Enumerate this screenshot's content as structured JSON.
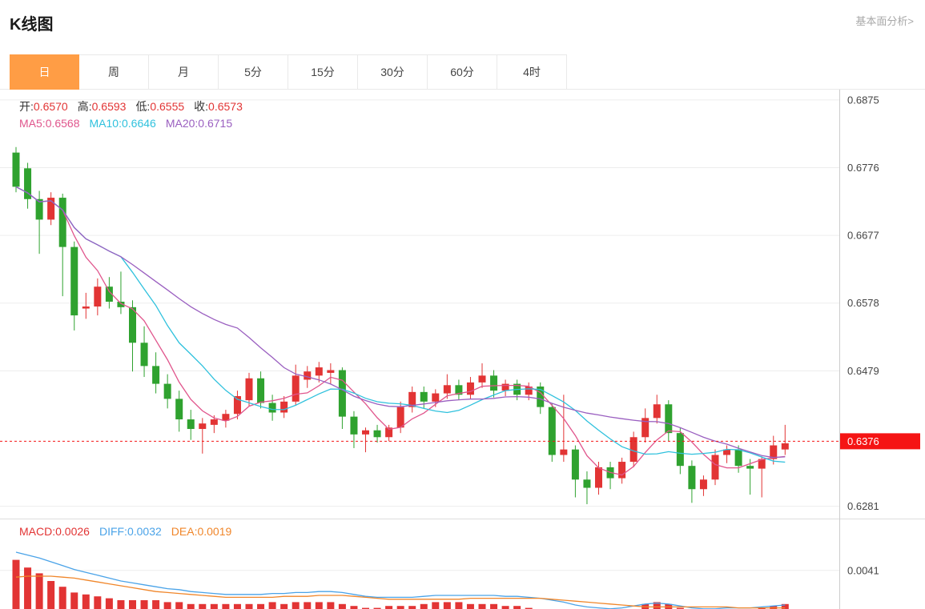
{
  "header": {
    "title": "K线图",
    "link_label": "基本面分析>"
  },
  "tabs": {
    "active_color": "#ff9d45",
    "items": [
      {
        "label": "日",
        "active": true
      },
      {
        "label": "周",
        "active": false
      },
      {
        "label": "月",
        "active": false
      },
      {
        "label": "5分",
        "active": false
      },
      {
        "label": "15分",
        "active": false
      },
      {
        "label": "30分",
        "active": false
      },
      {
        "label": "60分",
        "active": false
      },
      {
        "label": "4时",
        "active": false
      }
    ]
  },
  "legend": {
    "value_color": "#e23434",
    "ohlc": [
      {
        "label": "开:",
        "value": "0.6570"
      },
      {
        "label": "高:",
        "value": "0.6593"
      },
      {
        "label": "低:",
        "value": "0.6555"
      },
      {
        "label": "收:",
        "value": "0.6573"
      }
    ],
    "ma": [
      {
        "label": "MA5:",
        "value": "0.6568",
        "color": "#e0558c"
      },
      {
        "label": "MA10:",
        "value": "0.6646",
        "color": "#2fc1dd"
      },
      {
        "label": "MA20:",
        "value": "0.6715",
        "color": "#9a5fc0"
      }
    ]
  },
  "macd_legend": [
    {
      "label": "MACD:",
      "value": "0.0026",
      "color": "#e23434"
    },
    {
      "label": "DIFF:",
      "value": "0.0032",
      "color": "#4aa3e8"
    },
    {
      "label": "DEA:",
      "value": "0.0019",
      "color": "#f0862a"
    }
  ],
  "chart_data": {
    "type": "candlestick",
    "title": "K线图 日K",
    "up_color": "#e23434",
    "down_color": "#2fa22f",
    "grid_color": "#ededed",
    "y_ticks": [
      "0.6875",
      "0.6776",
      "0.6677",
      "0.6578",
      "0.6479",
      "0.6281"
    ],
    "y_range": [
      0.6263,
      0.689
    ],
    "current_price": 0.6376,
    "current_price_label": "0.6376",
    "current_price_color": "#f51414",
    "ma_periods": [
      5,
      10,
      20
    ],
    "ma_colors": [
      "#e0558c",
      "#2fc1dd",
      "#9a5fc0"
    ],
    "candles": [
      [
        0.6798,
        0.6806,
        0.674,
        0.6748
      ],
      [
        0.6775,
        0.6783,
        0.6716,
        0.673
      ],
      [
        0.673,
        0.6742,
        0.665,
        0.67
      ],
      [
        0.67,
        0.674,
        0.6692,
        0.6732
      ],
      [
        0.6732,
        0.6738,
        0.6588,
        0.666
      ],
      [
        0.666,
        0.6668,
        0.6538,
        0.656
      ],
      [
        0.657,
        0.6593,
        0.6555,
        0.6573
      ],
      [
        0.6573,
        0.6614,
        0.656,
        0.6602
      ],
      [
        0.6602,
        0.6616,
        0.657,
        0.658
      ],
      [
        0.658,
        0.6624,
        0.6562,
        0.6572
      ],
      [
        0.6572,
        0.6582,
        0.6478,
        0.652
      ],
      [
        0.652,
        0.6544,
        0.647,
        0.6486
      ],
      [
        0.6486,
        0.6506,
        0.6446,
        0.646
      ],
      [
        0.646,
        0.6474,
        0.6424,
        0.6438
      ],
      [
        0.6438,
        0.645,
        0.639,
        0.6408
      ],
      [
        0.6408,
        0.6422,
        0.6378,
        0.6394
      ],
      [
        0.6394,
        0.641,
        0.6358,
        0.6402
      ],
      [
        0.64,
        0.6414,
        0.6388,
        0.6408
      ],
      [
        0.6406,
        0.6422,
        0.6396,
        0.6416
      ],
      [
        0.6416,
        0.645,
        0.6408,
        0.6442
      ],
      [
        0.6436,
        0.6476,
        0.6428,
        0.6468
      ],
      [
        0.6468,
        0.6478,
        0.6424,
        0.6432
      ],
      [
        0.6432,
        0.6444,
        0.6406,
        0.6418
      ],
      [
        0.6418,
        0.6442,
        0.641,
        0.6434
      ],
      [
        0.6434,
        0.6488,
        0.6428,
        0.6472
      ],
      [
        0.6466,
        0.6486,
        0.6454,
        0.6478
      ],
      [
        0.6472,
        0.6492,
        0.6462,
        0.6484
      ],
      [
        0.6476,
        0.649,
        0.646,
        0.648
      ],
      [
        0.648,
        0.6484,
        0.6394,
        0.6412
      ],
      [
        0.6412,
        0.642,
        0.6366,
        0.6386
      ],
      [
        0.6386,
        0.6396,
        0.636,
        0.6392
      ],
      [
        0.6392,
        0.64,
        0.6374,
        0.6382
      ],
      [
        0.6382,
        0.64,
        0.6376,
        0.6396
      ],
      [
        0.6396,
        0.6434,
        0.6388,
        0.6426
      ],
      [
        0.6426,
        0.6456,
        0.6418,
        0.6448
      ],
      [
        0.6448,
        0.6456,
        0.6424,
        0.6434
      ],
      [
        0.6434,
        0.6452,
        0.6426,
        0.6446
      ],
      [
        0.6446,
        0.6474,
        0.6438,
        0.6458
      ],
      [
        0.6458,
        0.6466,
        0.6436,
        0.6444
      ],
      [
        0.6444,
        0.647,
        0.6438,
        0.6462
      ],
      [
        0.6462,
        0.649,
        0.6454,
        0.6472
      ],
      [
        0.6472,
        0.648,
        0.644,
        0.645
      ],
      [
        0.645,
        0.6466,
        0.6442,
        0.646
      ],
      [
        0.646,
        0.6466,
        0.6436,
        0.6444
      ],
      [
        0.6444,
        0.6462,
        0.6436,
        0.6456
      ],
      [
        0.6456,
        0.6462,
        0.6416,
        0.6426
      ],
      [
        0.6426,
        0.6432,
        0.6346,
        0.6356
      ],
      [
        0.6356,
        0.6444,
        0.6346,
        0.6364
      ],
      [
        0.6364,
        0.637,
        0.6294,
        0.632
      ],
      [
        0.632,
        0.6332,
        0.6284,
        0.6308
      ],
      [
        0.6308,
        0.6346,
        0.6298,
        0.6338
      ],
      [
        0.6338,
        0.6346,
        0.6306,
        0.6322
      ],
      [
        0.6322,
        0.6352,
        0.6314,
        0.6346
      ],
      [
        0.6346,
        0.639,
        0.6338,
        0.6382
      ],
      [
        0.6382,
        0.6424,
        0.6374,
        0.641
      ],
      [
        0.641,
        0.6444,
        0.6402,
        0.643
      ],
      [
        0.643,
        0.6436,
        0.6376,
        0.6388
      ],
      [
        0.6388,
        0.6396,
        0.6328,
        0.634
      ],
      [
        0.634,
        0.6348,
        0.6286,
        0.6306
      ],
      [
        0.6306,
        0.6326,
        0.6296,
        0.632
      ],
      [
        0.632,
        0.6364,
        0.6312,
        0.6356
      ],
      [
        0.6356,
        0.637,
        0.6344,
        0.6364
      ],
      [
        0.6364,
        0.637,
        0.633,
        0.634
      ],
      [
        0.634,
        0.635,
        0.6298,
        0.6336
      ],
      [
        0.6336,
        0.6354,
        0.6294,
        0.635
      ],
      [
        0.635,
        0.6384,
        0.6342,
        0.637
      ],
      [
        0.6364,
        0.64,
        0.6356,
        0.6373
      ]
    ],
    "macd": {
      "tick_label": "0.0041",
      "tick_value": 0.0041,
      "hist_color": "#e23434",
      "diff_color": "#4aa3e8",
      "dea_color": "#f0862a",
      "diff": [
        0.006,
        0.0057,
        0.0054,
        0.005,
        0.0046,
        0.0042,
        0.0039,
        0.0036,
        0.0033,
        0.003,
        0.0028,
        0.0026,
        0.0024,
        0.0022,
        0.0021,
        0.0019,
        0.0018,
        0.0017,
        0.0016,
        0.0016,
        0.0016,
        0.0016,
        0.0017,
        0.0017,
        0.0018,
        0.0018,
        0.0019,
        0.0019,
        0.0018,
        0.0016,
        0.0014,
        0.0013,
        0.0013,
        0.0013,
        0.0013,
        0.0014,
        0.0015,
        0.0015,
        0.0015,
        0.0015,
        0.0015,
        0.0015,
        0.0014,
        0.0014,
        0.0013,
        0.0012,
        0.001,
        0.0008,
        0.0005,
        0.0003,
        0.0002,
        0.0001,
        0.0002,
        0.0004,
        0.0006,
        0.0007,
        0.0006,
        0.0004,
        0.0002,
        0.0001,
        0.0001,
        0.0002,
        0.0002,
        0.0002,
        0.0003,
        0.0004,
        0.0005
      ],
      "dea": [
        0.0034,
        0.0035,
        0.0035,
        0.0035,
        0.0034,
        0.0033,
        0.0031,
        0.0029,
        0.0027,
        0.0025,
        0.0023,
        0.0021,
        0.0019,
        0.0018,
        0.0017,
        0.0016,
        0.0015,
        0.0014,
        0.0013,
        0.0013,
        0.0013,
        0.0013,
        0.0013,
        0.0014,
        0.0014,
        0.0014,
        0.0015,
        0.0015,
        0.0015,
        0.0014,
        0.0013,
        0.0012,
        0.0011,
        0.0011,
        0.0011,
        0.0011,
        0.0011,
        0.0011,
        0.0011,
        0.0012,
        0.0012,
        0.0012,
        0.0012,
        0.0012,
        0.0012,
        0.0012,
        0.0011,
        0.001,
        0.0009,
        0.0008,
        0.0007,
        0.0006,
        0.0005,
        0.0004,
        0.0003,
        0.0003,
        0.0003,
        0.0003,
        0.0003,
        0.0003,
        0.0003,
        0.0003,
        0.0002,
        0.0002,
        0.0002,
        0.0002,
        0.0002
      ],
      "hist": [
        0.0052,
        0.0044,
        0.0038,
        0.003,
        0.0024,
        0.0018,
        0.0016,
        0.0014,
        0.0012,
        0.001,
        0.001,
        0.001,
        0.001,
        0.0008,
        0.0008,
        0.0006,
        0.0006,
        0.0006,
        0.0006,
        0.0006,
        0.0006,
        0.0006,
        0.0008,
        0.0006,
        0.0008,
        0.0008,
        0.0008,
        0.0008,
        0.0006,
        0.0004,
        0.0002,
        0.0002,
        0.0004,
        0.0004,
        0.0004,
        0.0006,
        0.0008,
        0.0008,
        0.0008,
        0.0006,
        0.0006,
        0.0006,
        0.0004,
        0.0004,
        0.0002,
        0.0,
        -0.0002,
        -0.0004,
        -0.0008,
        -0.001,
        -0.001,
        -0.001,
        -0.0006,
        0.0,
        0.0006,
        0.0008,
        0.0006,
        0.0002,
        -0.0002,
        -0.0004,
        -0.0004,
        -0.0002,
        0.0,
        0.0,
        0.0002,
        0.0004,
        0.0006
      ]
    }
  }
}
